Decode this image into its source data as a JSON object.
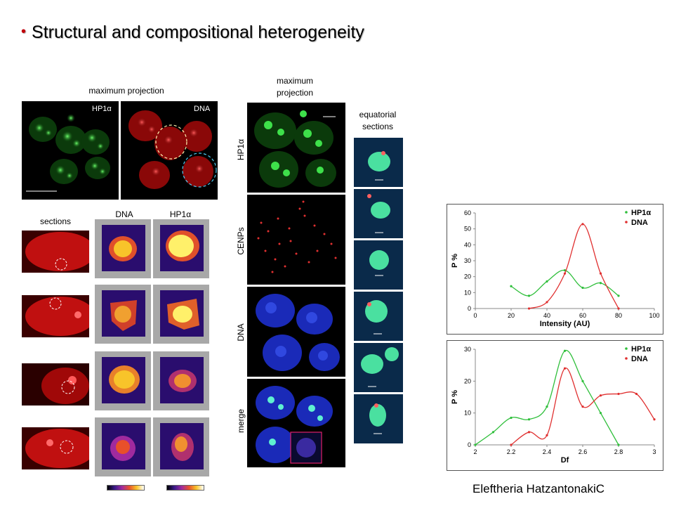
{
  "slide": {
    "title": "Structural and compositional heterogeneity",
    "credit": "Eleftheria HatzantonakiC"
  },
  "left_panel": {
    "top_label": "maximum projection",
    "hp1a_label": "HP1α",
    "dna_label": "DNA",
    "sections_label": "sections",
    "col_dna": "DNA",
    "col_hp1a": "HP1α"
  },
  "middle_panel": {
    "top_label_line1": "maximum",
    "top_label_line2": "projection",
    "equatorial_line1": "equatorial",
    "equatorial_line2": "sections",
    "rows": [
      "HP1α",
      "CENPs",
      "DNA",
      "merge"
    ]
  },
  "colors": {
    "hp1a": "#2fbf3b",
    "dna": "#e03030",
    "title_bullet": "#c0000b"
  },
  "chart_data": [
    {
      "type": "line",
      "xlabel": "Intensity (AU)",
      "ylabel": "P %",
      "xlim": [
        0,
        100
      ],
      "ylim": [
        0,
        60
      ],
      "xticks": [
        "0",
        "20",
        "40",
        "60",
        "80",
        "100"
      ],
      "yticks": [
        "0",
        "10",
        "20",
        "30",
        "40",
        "50",
        "60"
      ],
      "legend_position": "top-right",
      "series": [
        {
          "name": "HP1α",
          "color": "#2fbf3b",
          "x": [
            20,
            30,
            40,
            50,
            60,
            70,
            80
          ],
          "y": [
            14,
            8,
            17,
            24,
            13,
            16,
            8
          ]
        },
        {
          "name": "DNA",
          "color": "#e03030",
          "x": [
            30,
            40,
            50,
            60,
            70,
            80
          ],
          "y": [
            0,
            4,
            22,
            53,
            22,
            0
          ]
        }
      ]
    },
    {
      "type": "line",
      "xlabel": "Df",
      "ylabel": "P %",
      "xlim": [
        2,
        3
      ],
      "ylim": [
        0,
        30
      ],
      "xticks": [
        "2",
        "2.2",
        "2.4",
        "2.6",
        "2.8",
        "3"
      ],
      "yticks": [
        "0",
        "10",
        "20",
        "30"
      ],
      "legend_position": "top-right",
      "series": [
        {
          "name": "HP1α",
          "color": "#2fbf3b",
          "x": [
            2.0,
            2.1,
            2.2,
            2.3,
            2.4,
            2.5,
            2.6,
            2.7,
            2.8
          ],
          "y": [
            0,
            4,
            8.5,
            8,
            12,
            29.5,
            20,
            10,
            0
          ]
        },
        {
          "name": "DNA",
          "color": "#e03030",
          "x": [
            2.2,
            2.3,
            2.4,
            2.5,
            2.6,
            2.7,
            2.8,
            2.9,
            3.0
          ],
          "y": [
            0,
            4,
            3,
            24,
            12,
            15.5,
            16,
            16,
            8
          ]
        }
      ]
    }
  ]
}
